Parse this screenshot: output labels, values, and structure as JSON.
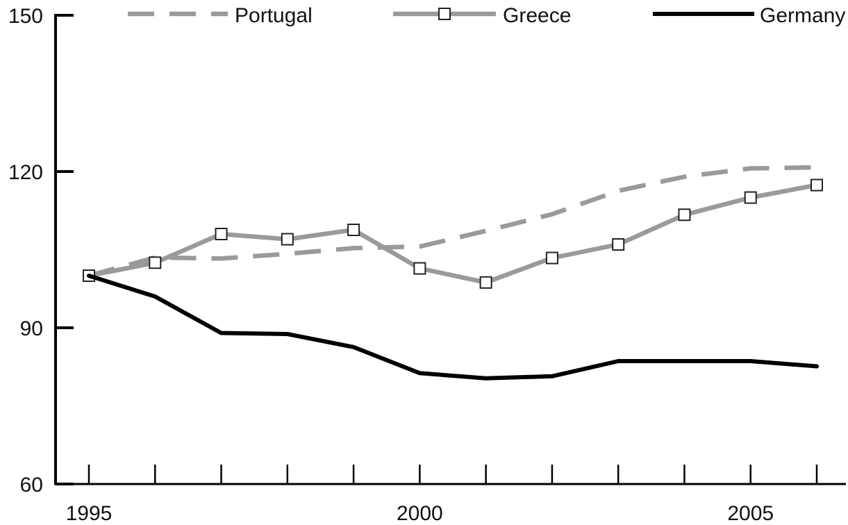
{
  "chart_data": {
    "type": "line",
    "title": "",
    "xlabel": "",
    "ylabel": "",
    "x": [
      1995,
      1996,
      1997,
      1998,
      1999,
      2000,
      2001,
      2002,
      2003,
      2004,
      2005,
      2006
    ],
    "x_tick_labels": [
      "1995",
      "2000",
      "2005"
    ],
    "y_ticks": [
      60,
      90,
      120,
      150
    ],
    "y_tick_labels": [
      "60",
      "90",
      "120",
      "150"
    ],
    "xlim": [
      1995,
      2006
    ],
    "ylim": [
      60,
      150
    ],
    "grid": false,
    "legend_position": "top",
    "series": [
      {
        "name": "Portugal",
        "style": "dashed",
        "color": "#9a9a9a",
        "marker": "none",
        "values": [
          100.0,
          103.5,
          103.3,
          104.2,
          105.3,
          105.6,
          108.6,
          111.8,
          116.3,
          119.0,
          120.6,
          120.8
        ]
      },
      {
        "name": "Greece",
        "style": "solid",
        "color": "#9a9a9a",
        "marker": "square",
        "values": [
          100.0,
          102.5,
          108.0,
          107.0,
          108.8,
          101.4,
          98.7,
          103.4,
          106.0,
          111.7,
          115.0,
          117.4
        ]
      },
      {
        "name": "Germany",
        "style": "solid",
        "color": "#000000",
        "marker": "none",
        "values": [
          100.0,
          96.0,
          89.0,
          88.8,
          86.3,
          81.3,
          80.3,
          80.7,
          83.6,
          83.6,
          83.6,
          82.6
        ]
      }
    ]
  }
}
